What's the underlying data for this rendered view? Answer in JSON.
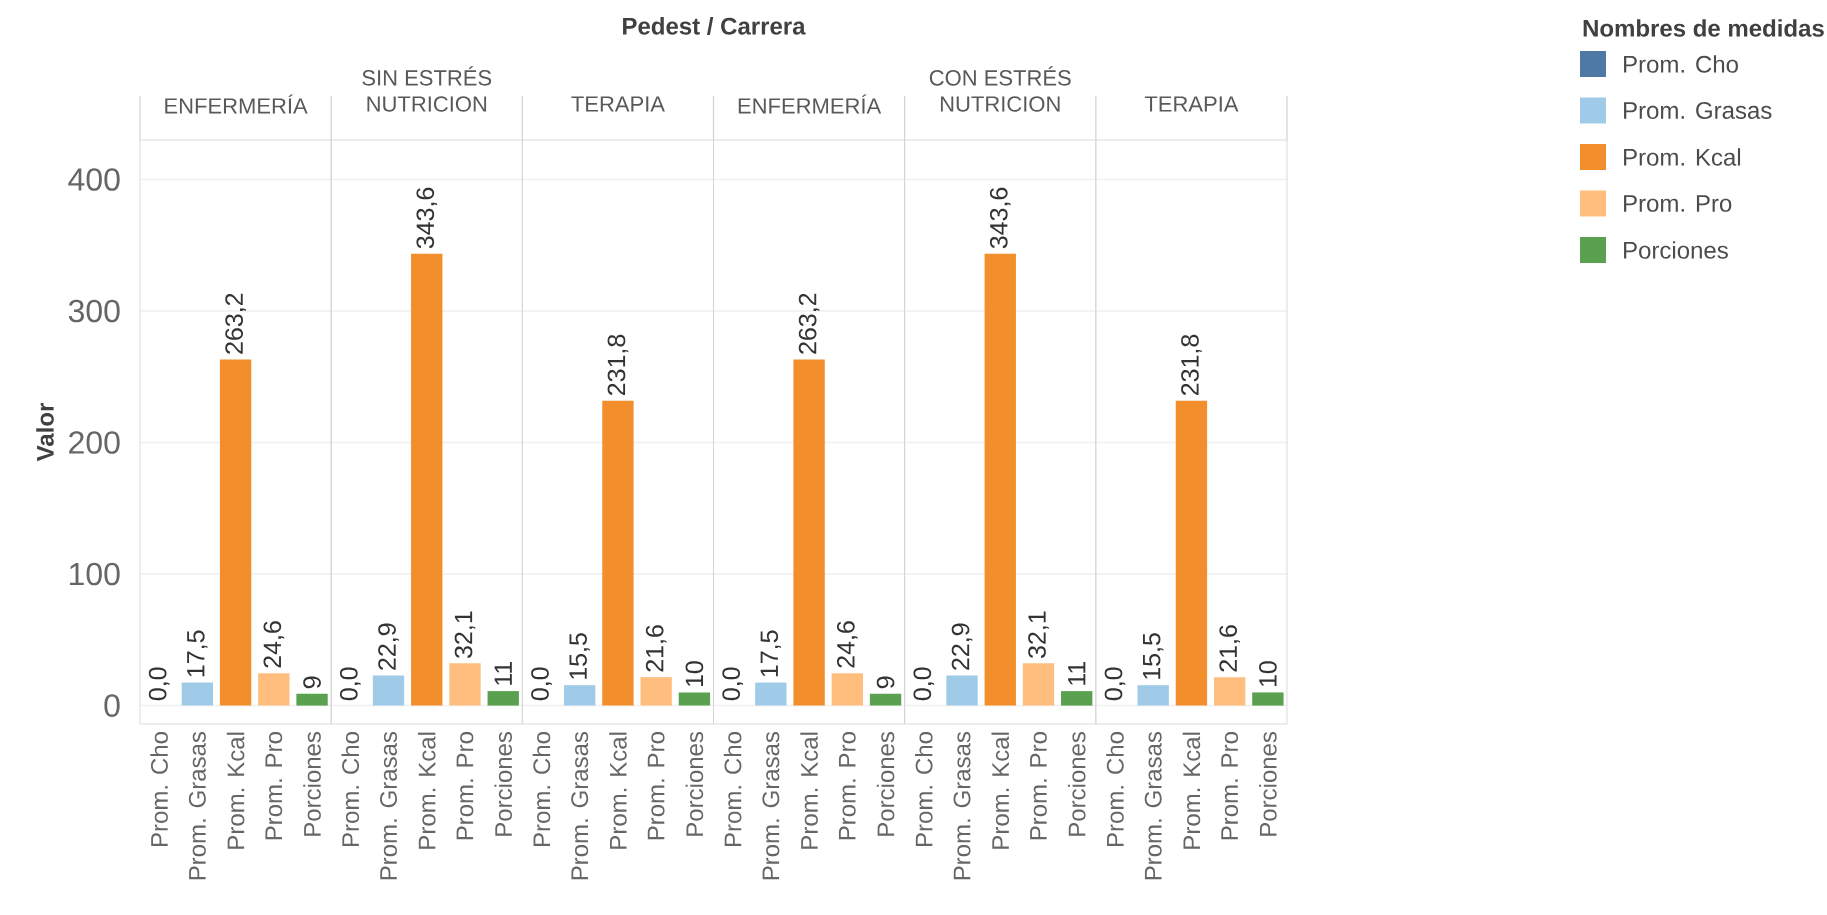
{
  "chart_data": [
    {
      "type": "bar",
      "title": "ENFERMERÍA",
      "annotations": [
        "Pedest / Carrera"
      ],
      "ylabel": "Valor",
      "categories": [
        "Prom. Cho",
        "Prom. Grasas",
        "Prom. Kcal",
        "Prom. Pro",
        "Porciones"
      ],
      "ylim": [
        -14,
        430
      ],
      "yticks": [
        0,
        100,
        200,
        300,
        400
      ],
      "grid": "y",
      "series": [
        {
          "color": "#4e79a7",
          "values": [
            0.0,
            null,
            null,
            null,
            null
          ],
          "value_labels": [
            "0,0",
            null,
            null,
            null,
            null
          ]
        },
        {
          "color": "#a0cbe8",
          "values": [
            null,
            17.5,
            null,
            null,
            null
          ],
          "value_labels": [
            null,
            "17,5",
            null,
            null,
            null
          ]
        },
        {
          "color": "#f28e2b",
          "values": [
            null,
            null,
            263.2,
            null,
            null
          ],
          "value_labels": [
            null,
            null,
            "263,2",
            null,
            null
          ]
        },
        {
          "color": "#ffbe7d",
          "values": [
            null,
            null,
            null,
            24.6,
            null
          ],
          "value_labels": [
            null,
            null,
            null,
            "24,6",
            null
          ]
        },
        {
          "color": "#59a14f",
          "values": [
            null,
            null,
            null,
            null,
            9
          ],
          "value_labels": [
            null,
            null,
            null,
            null,
            "9"
          ]
        }
      ]
    },
    {
      "type": "bar",
      "title": "NUTRICION",
      "subtitle": "SIN ESTRÉS",
      "categories": [
        "Prom. Cho",
        "Prom. Grasas",
        "Prom. Kcal",
        "Prom. Pro",
        "Porciones"
      ],
      "ylim": [
        -14,
        430
      ],
      "yticks": [
        0,
        100,
        200,
        300,
        400
      ],
      "grid": "y",
      "tick_labels": "x",
      "series": [
        {
          "color": "#4e79a7",
          "values": [
            0.0,
            null,
            null,
            null,
            null
          ],
          "value_labels": [
            "0,0",
            null,
            null,
            null,
            null
          ]
        },
        {
          "color": "#a0cbe8",
          "values": [
            null,
            22.9,
            null,
            null,
            null
          ],
          "value_labels": [
            null,
            "22,9",
            null,
            null,
            null
          ]
        },
        {
          "color": "#f28e2b",
          "values": [
            null,
            null,
            343.6,
            null,
            null
          ],
          "value_labels": [
            null,
            null,
            "343,6",
            null,
            null
          ]
        },
        {
          "color": "#ffbe7d",
          "values": [
            null,
            null,
            null,
            32.1,
            null
          ],
          "value_labels": [
            null,
            null,
            null,
            "32,1",
            null
          ]
        },
        {
          "color": "#59a14f",
          "values": [
            null,
            null,
            null,
            null,
            11
          ],
          "value_labels": [
            null,
            null,
            null,
            null,
            "11"
          ]
        }
      ]
    },
    {
      "type": "bar",
      "title": "TERAPIA",
      "categories": [
        "Prom. Cho",
        "Prom. Grasas",
        "Prom. Kcal",
        "Prom. Pro",
        "Porciones"
      ],
      "ylim": [
        -14,
        430
      ],
      "yticks": [
        0,
        100,
        200,
        300,
        400
      ],
      "grid": "y",
      "tick_labels": "x",
      "series": [
        {
          "color": "#4e79a7",
          "values": [
            0.0,
            null,
            null,
            null,
            null
          ],
          "value_labels": [
            "0,0",
            null,
            null,
            null,
            null
          ]
        },
        {
          "color": "#a0cbe8",
          "values": [
            null,
            15.5,
            null,
            null,
            null
          ],
          "value_labels": [
            null,
            "15,5",
            null,
            null,
            null
          ]
        },
        {
          "color": "#f28e2b",
          "values": [
            null,
            null,
            231.8,
            null,
            null
          ],
          "value_labels": [
            null,
            null,
            "231,8",
            null,
            null
          ]
        },
        {
          "color": "#ffbe7d",
          "values": [
            null,
            null,
            null,
            21.6,
            null
          ],
          "value_labels": [
            null,
            null,
            null,
            "21,6",
            null
          ]
        },
        {
          "color": "#59a14f",
          "values": [
            null,
            null,
            null,
            null,
            10
          ],
          "value_labels": [
            null,
            null,
            null,
            null,
            "10"
          ]
        }
      ]
    },
    {
      "type": "bar",
      "title": "ENFERMERÍA",
      "categories": [
        "Prom. Cho",
        "Prom. Grasas",
        "Prom. Kcal",
        "Prom. Pro",
        "Porciones"
      ],
      "ylim": [
        -14,
        430
      ],
      "yticks": [
        0,
        100,
        200,
        300,
        400
      ],
      "grid": "y",
      "tick_labels": "x",
      "series": [
        {
          "color": "#4e79a7",
          "values": [
            0.0,
            null,
            null,
            null,
            null
          ],
          "value_labels": [
            "0,0",
            null,
            null,
            null,
            null
          ]
        },
        {
          "color": "#a0cbe8",
          "values": [
            null,
            17.5,
            null,
            null,
            null
          ],
          "value_labels": [
            null,
            "17,5",
            null,
            null,
            null
          ]
        },
        {
          "color": "#f28e2b",
          "values": [
            null,
            null,
            263.2,
            null,
            null
          ],
          "value_labels": [
            null,
            null,
            "263,2",
            null,
            null
          ]
        },
        {
          "color": "#ffbe7d",
          "values": [
            null,
            null,
            null,
            24.6,
            null
          ],
          "value_labels": [
            null,
            null,
            null,
            "24,6",
            null
          ]
        },
        {
          "color": "#59a14f",
          "values": [
            null,
            null,
            null,
            null,
            9
          ],
          "value_labels": [
            null,
            null,
            null,
            null,
            "9"
          ]
        }
      ]
    },
    {
      "type": "bar",
      "title": "NUTRICION",
      "subtitle": "CON ESTRÉS",
      "categories": [
        "Prom. Cho",
        "Prom. Grasas",
        "Prom. Kcal",
        "Prom. Pro",
        "Porciones"
      ],
      "ylim": [
        -14,
        430
      ],
      "yticks": [
        0,
        100,
        200,
        300,
        400
      ],
      "grid": "y",
      "tick_labels": "x",
      "series": [
        {
          "color": "#4e79a7",
          "values": [
            0.0,
            null,
            null,
            null,
            null
          ],
          "value_labels": [
            "0,0",
            null,
            null,
            null,
            null
          ]
        },
        {
          "color": "#a0cbe8",
          "values": [
            null,
            22.9,
            null,
            null,
            null
          ],
          "value_labels": [
            null,
            "22,9",
            null,
            null,
            null
          ]
        },
        {
          "color": "#f28e2b",
          "values": [
            null,
            null,
            343.6,
            null,
            null
          ],
          "value_labels": [
            null,
            null,
            "343,6",
            null,
            null
          ]
        },
        {
          "color": "#ffbe7d",
          "values": [
            null,
            null,
            null,
            32.1,
            null
          ],
          "value_labels": [
            null,
            null,
            null,
            "32,1",
            null
          ]
        },
        {
          "color": "#59a14f",
          "values": [
            null,
            null,
            null,
            null,
            11
          ],
          "value_labels": [
            null,
            null,
            null,
            null,
            "11"
          ]
        }
      ]
    },
    {
      "type": "bar",
      "title": "TERAPIA",
      "legend_title": "Nombres de medidas",
      "legend": "right",
      "categories": [
        "Prom. Cho",
        "Prom. Grasas",
        "Prom. Kcal",
        "Prom. Pro",
        "Porciones"
      ],
      "ylim": [
        -14,
        430
      ],
      "yticks": [
        0,
        100,
        200,
        300,
        400
      ],
      "grid": "y",
      "tick_labels": "x",
      "series": [
        {
          "name": "Prom. Cho",
          "color": "#4e79a7",
          "values": [
            0.0,
            null,
            null,
            null,
            null
          ],
          "value_labels": [
            "0,0",
            null,
            null,
            null,
            null
          ]
        },
        {
          "name": "Prom. Grasas",
          "color": "#a0cbe8",
          "values": [
            null,
            15.5,
            null,
            null,
            null
          ],
          "value_labels": [
            null,
            "15,5",
            null,
            null,
            null
          ]
        },
        {
          "name": "Prom. Kcal",
          "color": "#f28e2b",
          "values": [
            null,
            null,
            231.8,
            null,
            null
          ],
          "value_labels": [
            null,
            null,
            "231,8",
            null,
            null
          ]
        },
        {
          "name": "Prom. Pro",
          "color": "#ffbe7d",
          "values": [
            null,
            null,
            null,
            21.6,
            null
          ],
          "value_labels": [
            null,
            null,
            null,
            "21,6",
            null
          ]
        },
        {
          "name": "Porciones",
          "color": "#59a14f",
          "values": [
            null,
            null,
            null,
            null,
            10
          ],
          "value_labels": [
            null,
            null,
            null,
            null,
            "10"
          ]
        }
      ]
    }
  ]
}
